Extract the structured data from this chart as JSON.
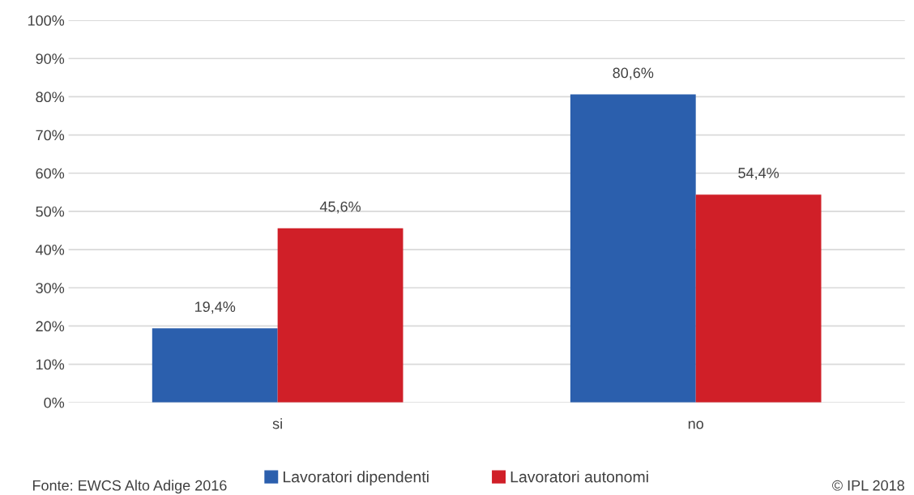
{
  "chart_data": {
    "type": "bar",
    "categories": [
      "si",
      "no"
    ],
    "series": [
      {
        "name": "Lavoratori dipendenti",
        "color": "#2b5fad",
        "values": [
          19.4,
          80.6
        ],
        "value_labels": [
          "19,4%",
          "80,6%"
        ]
      },
      {
        "name": "Lavoratori autonomi",
        "color": "#d01f28",
        "values": [
          45.6,
          54.4
        ],
        "value_labels": [
          "45,6%",
          "54,4%"
        ]
      }
    ],
    "ylim": [
      0,
      100
    ],
    "yticks": [
      {
        "value": 0,
        "label": "0%"
      },
      {
        "value": 10,
        "label": "10%"
      },
      {
        "value": 20,
        "label": "20%"
      },
      {
        "value": 30,
        "label": "30%"
      },
      {
        "value": 40,
        "label": "40%"
      },
      {
        "value": 50,
        "label": "50%"
      },
      {
        "value": 60,
        "label": "60%"
      },
      {
        "value": 70,
        "label": "70%"
      },
      {
        "value": 80,
        "label": "80%"
      },
      {
        "value": 90,
        "label": "90%"
      },
      {
        "value": 100,
        "label": "100%"
      }
    ],
    "grid": "y",
    "legend": "bottom",
    "annotations": [
      "Fonte: EWCS Alto Adige 2016",
      "© IPL 2018"
    ]
  }
}
